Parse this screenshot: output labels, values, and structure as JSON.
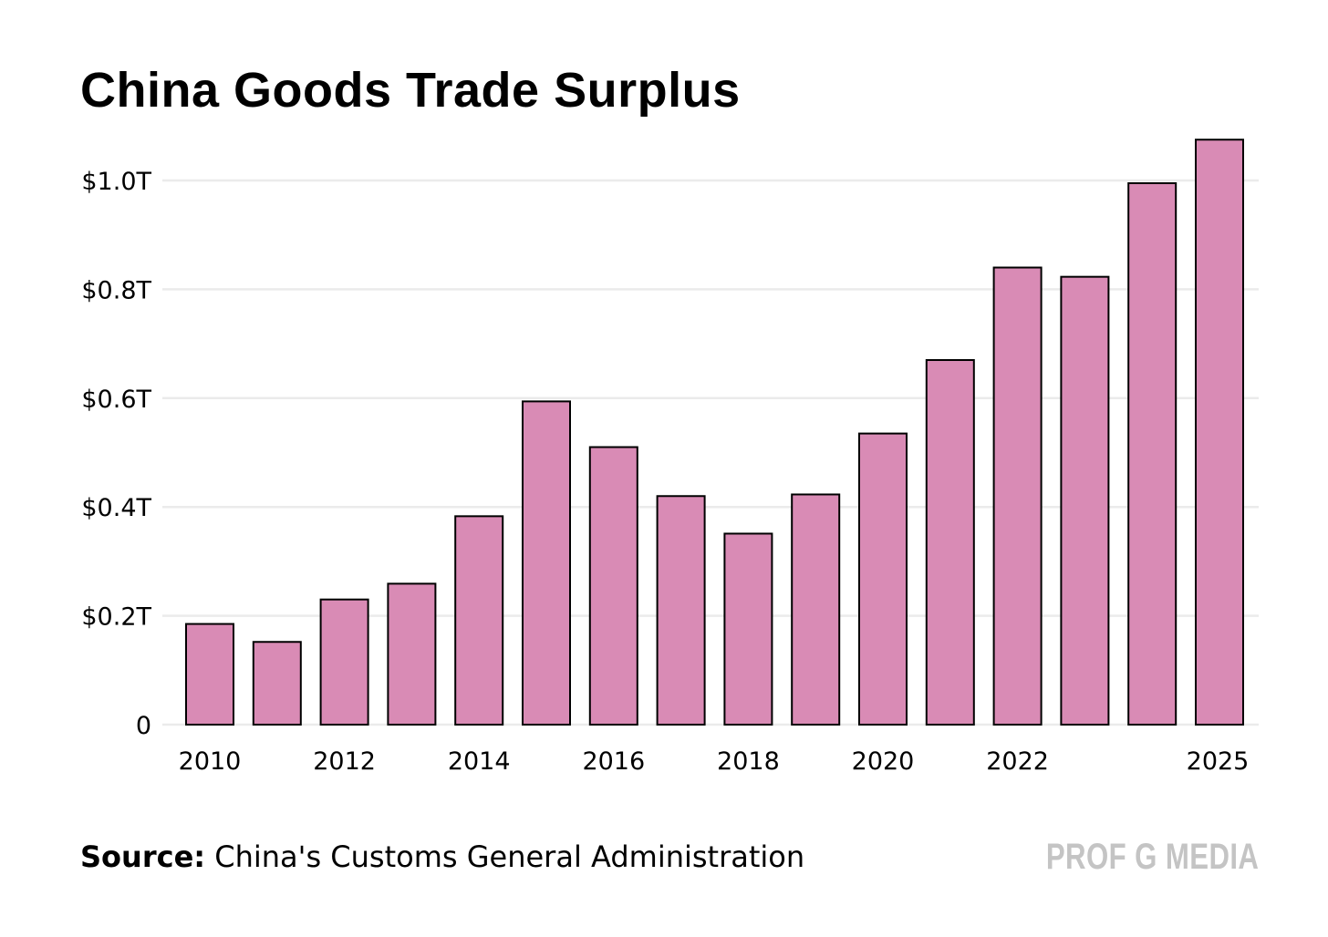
{
  "chart_data": {
    "type": "bar",
    "title": "China Goods Trade Surplus",
    "xlabel": "",
    "ylabel": "",
    "categories": [
      "2010",
      "2011",
      "2012",
      "2013",
      "2014",
      "2015",
      "2016",
      "2017",
      "2018",
      "2019",
      "2020",
      "2021",
      "2022",
      "2023",
      "2024",
      "2025"
    ],
    "values": [
      0.185,
      0.152,
      0.23,
      0.259,
      0.383,
      0.594,
      0.51,
      0.42,
      0.351,
      0.423,
      0.535,
      0.67,
      0.84,
      0.823,
      0.995,
      1.075
    ],
    "x_tick_labels": [
      {
        "category": "2010",
        "label": "2010"
      },
      {
        "category": "2012",
        "label": "2012"
      },
      {
        "category": "2014",
        "label": "2014"
      },
      {
        "category": "2016",
        "label": "2016"
      },
      {
        "category": "2018",
        "label": "2018"
      },
      {
        "category": "2020",
        "label": "2020"
      },
      {
        "category": "2022",
        "label": "2022"
      },
      {
        "category": "2025",
        "label": "2025"
      }
    ],
    "y_ticks": [
      {
        "value": 0,
        "label": "0"
      },
      {
        "value": 0.2,
        "label": "$0.2T"
      },
      {
        "value": 0.4,
        "label": "$0.4T"
      },
      {
        "value": 0.6,
        "label": "$0.6T"
      },
      {
        "value": 0.8,
        "label": "$0.8T"
      },
      {
        "value": 1.0,
        "label": "$1.0T"
      }
    ],
    "ylim": [
      0,
      1.075
    ],
    "grid": true,
    "legend": "none",
    "bar_color": "#d98bb5",
    "bar_outline_color": "#000000",
    "grid_color": "#ebebeb"
  },
  "footer": {
    "source_label": "Source:",
    "source_text": " China's Customs General Administration",
    "brand": "PROF G MEDIA",
    "brand_color": "#c4c4c4"
  }
}
